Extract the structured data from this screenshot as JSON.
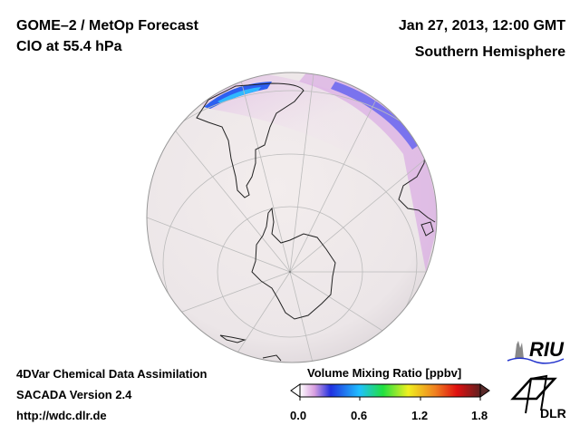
{
  "header": {
    "title_line1": "GOME–2 / MetOp Forecast",
    "title_line2": "ClO at 55.4 hPa",
    "date": "Jan 27, 2013, 12:00 GMT",
    "region": "Southern Hemisphere"
  },
  "footer": {
    "line1": "4DVar Chemical Data Assimilation",
    "line2": "SACADA Version 2.4",
    "line3": "http://wdc.dlr.de"
  },
  "colorbar": {
    "title": "Volume Mixing Ratio [ppbv]",
    "ticks": [
      "0.0",
      "0.6",
      "1.2",
      "1.8"
    ],
    "range": [
      0.0,
      1.8
    ],
    "colors": [
      "#ffffff",
      "#d9a0e0",
      "#2030e0",
      "#20c0ff",
      "#20e040",
      "#f0f020",
      "#f08020",
      "#e01010",
      "#602020"
    ]
  },
  "logos": {
    "riu": "RIU",
    "dlr": "DLR"
  }
}
